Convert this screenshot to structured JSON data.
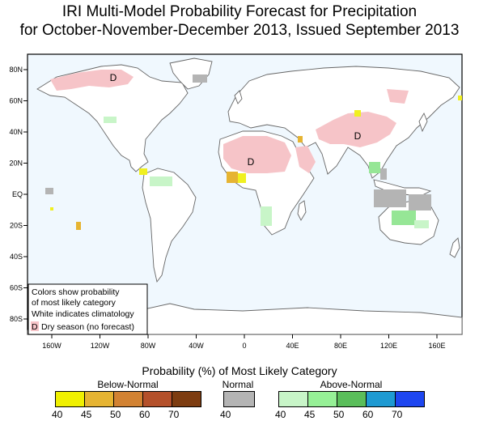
{
  "title_line1": "IRI Multi-Model Probability Forecast for Precipitation",
  "title_line2": "for October-November-December 2013, Issued September 2013",
  "map": {
    "lat_labels": [
      "80N",
      "60N",
      "40N",
      "20N",
      "EQ",
      "20S",
      "40S",
      "60S",
      "80S"
    ],
    "lon_labels": [
      "160W",
      "120W",
      "80W",
      "40W",
      "0",
      "40E",
      "80E",
      "120E",
      "160E"
    ],
    "dry_season_markers": [
      "D",
      "D",
      "D"
    ],
    "colors": {
      "ocean": "#f0f8fe",
      "land": "#ffffff",
      "coast": "#666666",
      "dry": "#f6c4c8",
      "normal": "#b4b4b4",
      "above40": "#c8f5c8",
      "above45": "#96e696",
      "below40": "#f0f020",
      "below45": "#e6b432"
    }
  },
  "info_box": {
    "line1": "Colors show probability",
    "line2": "of most likely category",
    "line3": "White indicates climatology",
    "line4": "Dry season (no forecast)",
    "dry_marker": "D"
  },
  "legend": {
    "title": "Probability (%) of Most Likely Category",
    "below_normal": {
      "label": "Below-Normal",
      "colors": [
        "#f0f000",
        "#e6b432",
        "#d28232",
        "#b4502a",
        "#7d3c10"
      ],
      "ticks": [
        "40",
        "45",
        "50",
        "60",
        "70"
      ]
    },
    "normal": {
      "label": "Normal",
      "colors": [
        "#b4b4b4"
      ],
      "ticks": [
        "40"
      ]
    },
    "above_normal": {
      "label": "Above-Normal",
      "colors": [
        "#c8f5c8",
        "#96f096",
        "#5abe5a",
        "#1e9ad2",
        "#1e46f0"
      ],
      "ticks": [
        "40",
        "45",
        "50",
        "60",
        "70"
      ]
    }
  }
}
